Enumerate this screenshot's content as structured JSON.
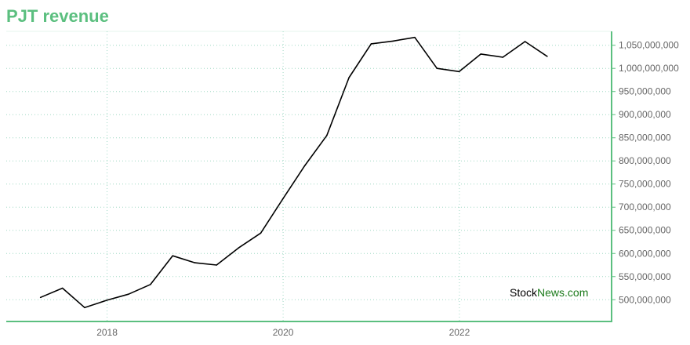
{
  "title": "PJT revenue",
  "colors": {
    "title": "#5bbf7f",
    "axis": "#5bbf7f",
    "grid": "#9fd8c4",
    "line": "#000000",
    "watermark_primary": "#000000",
    "watermark_accent": "#1a7a1a"
  },
  "watermark": {
    "part_a": "Stock",
    "part_b": "News.com"
  },
  "chart_data": {
    "type": "line",
    "title": "PJT revenue",
    "xlabel": "",
    "ylabel": "",
    "x_axis": "date",
    "xlim": [
      "2016-11-09",
      "2023-09-24"
    ],
    "ylim": [
      453000000,
      1080000000
    ],
    "grid": true,
    "y_axis_side": "right",
    "x_ticks": [
      {
        "date": "2018-01-01",
        "label": "2018"
      },
      {
        "date": "2020-01-01",
        "label": "2020"
      },
      {
        "date": "2022-01-01",
        "label": "2022"
      }
    ],
    "y_ticks": [
      {
        "value": 500000000,
        "label": "500,000,000"
      },
      {
        "value": 550000000,
        "label": "550,000,000"
      },
      {
        "value": 600000000,
        "label": "600,000,000"
      },
      {
        "value": 650000000,
        "label": "650,000,000"
      },
      {
        "value": 700000000,
        "label": "700,000,000"
      },
      {
        "value": 750000000,
        "label": "750,000,000"
      },
      {
        "value": 800000000,
        "label": "800,000,000"
      },
      {
        "value": 850000000,
        "label": "850,000,000"
      },
      {
        "value": 900000000,
        "label": "900,000,000"
      },
      {
        "value": 950000000,
        "label": "950,000,000"
      },
      {
        "value": 1000000000,
        "label": "1,000,000,000"
      },
      {
        "value": 1050000000,
        "label": "1,050,000,000"
      }
    ],
    "series": [
      {
        "points": [
          {
            "x": "2017-03-31",
            "y": 505000000
          },
          {
            "x": "2017-06-30",
            "y": 525000000
          },
          {
            "x": "2017-09-30",
            "y": 483000000
          },
          {
            "x": "2017-12-31",
            "y": 499000000
          },
          {
            "x": "2018-03-31",
            "y": 512000000
          },
          {
            "x": "2018-06-30",
            "y": 533000000
          },
          {
            "x": "2018-09-30",
            "y": 595000000
          },
          {
            "x": "2018-12-31",
            "y": 580000000
          },
          {
            "x": "2019-03-31",
            "y": 575000000
          },
          {
            "x": "2019-06-30",
            "y": 612000000
          },
          {
            "x": "2019-09-30",
            "y": 644000000
          },
          {
            "x": "2019-12-31",
            "y": 718000000
          },
          {
            "x": "2020-03-31",
            "y": 790000000
          },
          {
            "x": "2020-06-30",
            "y": 855000000
          },
          {
            "x": "2020-09-30",
            "y": 980000000
          },
          {
            "x": "2020-12-31",
            "y": 1053000000
          },
          {
            "x": "2021-03-31",
            "y": 1059000000
          },
          {
            "x": "2021-06-30",
            "y": 1067000000
          },
          {
            "x": "2021-09-30",
            "y": 1000000000
          },
          {
            "x": "2021-12-31",
            "y": 993000000
          },
          {
            "x": "2022-03-31",
            "y": 1031000000
          },
          {
            "x": "2022-06-30",
            "y": 1024000000
          },
          {
            "x": "2022-09-30",
            "y": 1058000000
          },
          {
            "x": "2022-12-31",
            "y": 1026000000
          }
        ]
      }
    ]
  }
}
